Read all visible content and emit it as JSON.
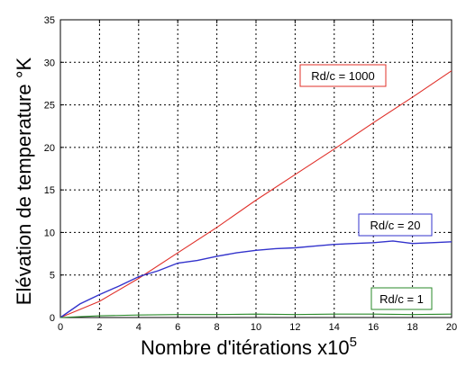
{
  "chart_data": {
    "type": "line",
    "xlabel": "Nombre d'itérations x10",
    "xlabel_exponent": "5",
    "ylabel": "Elévation de temperature °K",
    "xlim": [
      0,
      20
    ],
    "ylim": [
      0,
      35
    ],
    "xticks": [
      0,
      2,
      4,
      6,
      8,
      10,
      12,
      14,
      16,
      18,
      20
    ],
    "yticks": [
      0,
      5,
      10,
      15,
      20,
      25,
      30,
      35
    ],
    "grid": true,
    "grid_style": "dotted",
    "series": [
      {
        "name": "Rd/c = 1000",
        "color": "#e0302a",
        "x": [
          0,
          2,
          4,
          6,
          8,
          10,
          12,
          14,
          16,
          18,
          20
        ],
        "y": [
          0,
          1.9,
          4.6,
          7.6,
          10.6,
          13.8,
          16.8,
          19.8,
          22.9,
          25.9,
          29.0
        ]
      },
      {
        "name": "Rd/c = 20",
        "color": "#3333cc",
        "x": [
          0,
          1,
          2,
          3,
          4,
          5,
          6,
          7,
          8,
          9,
          10,
          11,
          12,
          13,
          14,
          15,
          16,
          17,
          18,
          19,
          20
        ],
        "y": [
          0,
          1.6,
          2.7,
          3.7,
          4.8,
          5.5,
          6.4,
          6.7,
          7.2,
          7.6,
          7.9,
          8.1,
          8.2,
          8.4,
          8.6,
          8.7,
          8.8,
          9.0,
          8.7,
          8.8,
          8.9
        ]
      },
      {
        "name": "Rd/c = 1",
        "color": "#2a8a2a",
        "x": [
          0,
          2,
          4,
          6,
          8,
          10,
          12,
          14,
          16,
          18,
          20
        ],
        "y": [
          0,
          0.2,
          0.3,
          0.35,
          0.35,
          0.4,
          0.35,
          0.4,
          0.4,
          0.35,
          0.4
        ]
      }
    ],
    "annotations": [
      {
        "text": "Rd/c = 1000",
        "series": 0
      },
      {
        "text": "Rd/c = 20",
        "series": 1
      },
      {
        "text": "Rd/c = 1",
        "series": 2
      }
    ]
  }
}
